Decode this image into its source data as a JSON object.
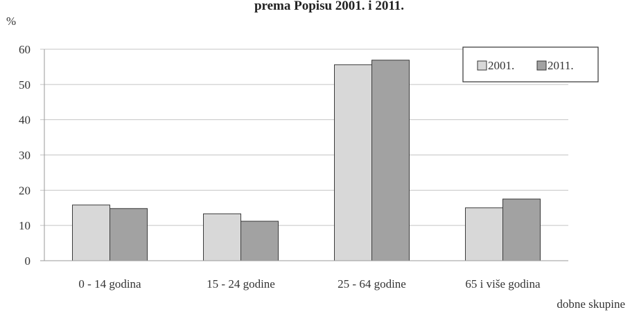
{
  "chart_data": {
    "type": "bar",
    "title": "prema Popisu 2001. i 2011.",
    "ylabel": "%",
    "xlabel": "dobne skupine",
    "categories": [
      "0 - 14 godina",
      "15  - 24 godine",
      "25 - 64 godine",
      "65  i više godina"
    ],
    "series": [
      {
        "name": "2001.",
        "values": [
          15.8,
          13.3,
          55.6,
          15.0
        ],
        "color": "#d8d8d8"
      },
      {
        "name": "2011.",
        "values": [
          14.8,
          11.2,
          56.9,
          17.5
        ],
        "color": "#a2a2a2"
      }
    ],
    "ylim": [
      0,
      60
    ],
    "yticks": [
      "0",
      "10",
      "20",
      "30",
      "40",
      "50",
      "60"
    ],
    "grid": true,
    "legend_position": "top-right"
  }
}
